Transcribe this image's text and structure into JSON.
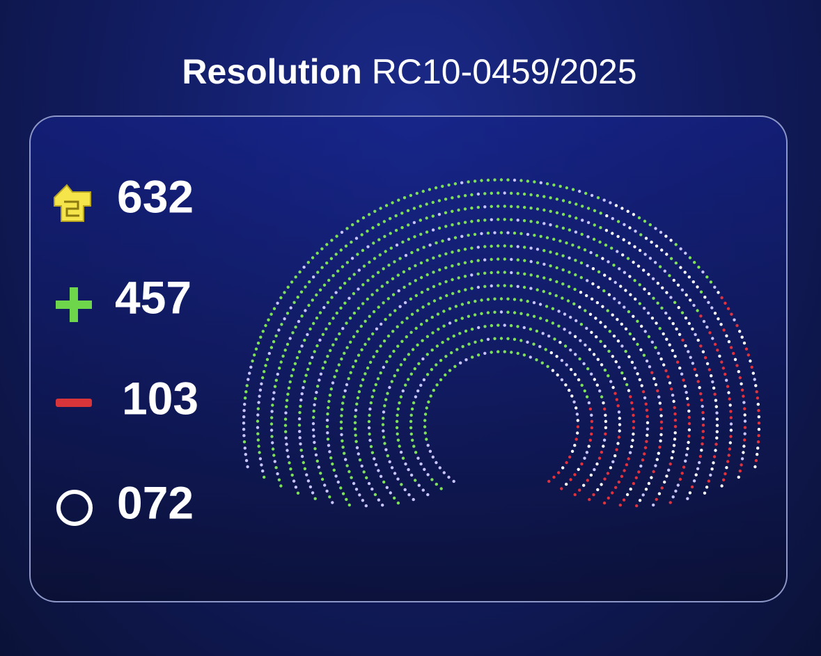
{
  "title": {
    "label": "Resolution",
    "number": "RC10-0459/2025"
  },
  "results": [
    {
      "kind": "present",
      "count": "632"
    },
    {
      "kind": "for",
      "count": "457"
    },
    {
      "kind": "against",
      "count": "103"
    },
    {
      "kind": "abstention",
      "count": "072"
    }
  ]
}
